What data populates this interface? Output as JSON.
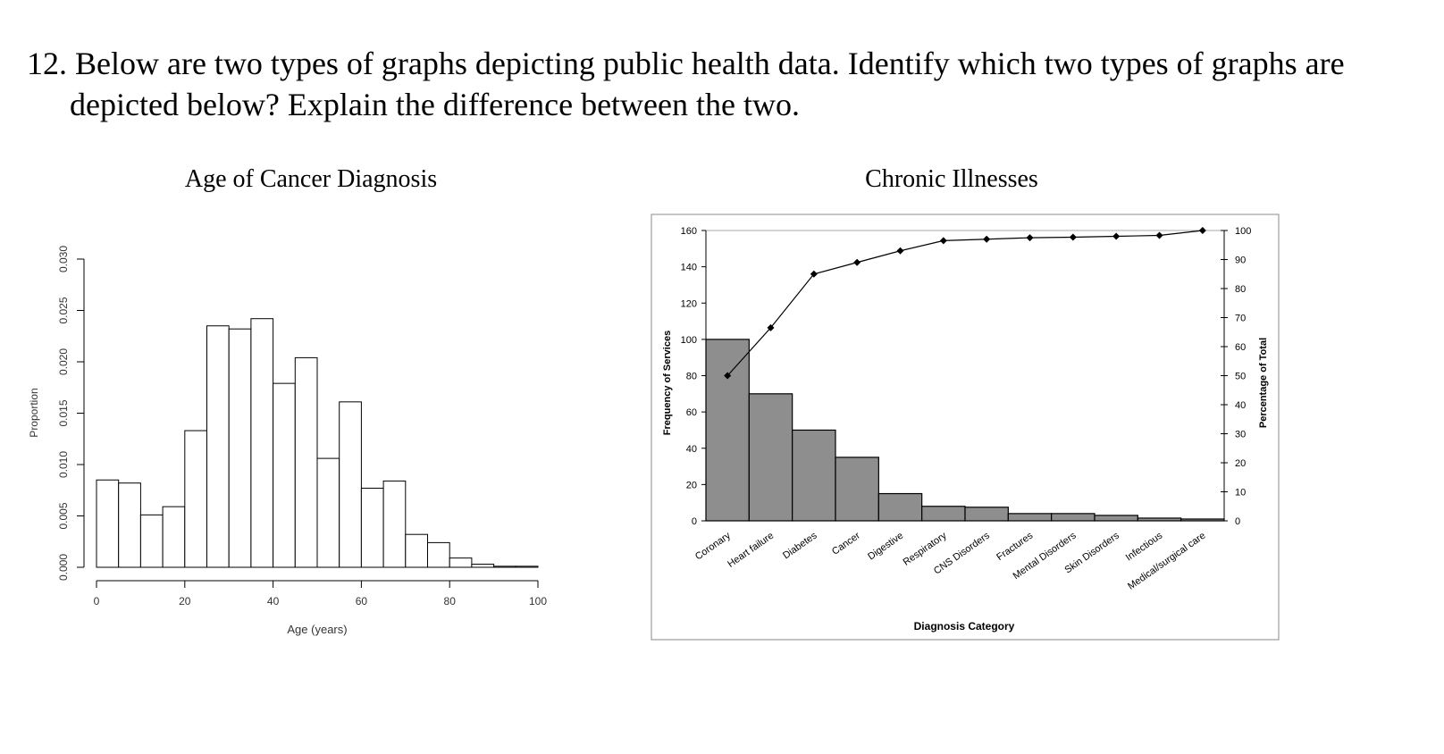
{
  "question": {
    "number": "12.",
    "line1": "Below are two types of graphs depicting public health data. Identify which two types of graphs are",
    "line2": "depicted below? Explain the difference between the two."
  },
  "chart_data": [
    {
      "type": "bar",
      "subtype": "histogram",
      "title": "Age of Cancer Diagnosis",
      "xlabel": "Age (years)",
      "ylabel": "Proportion",
      "xlim": [
        0,
        100
      ],
      "ylim": [
        0,
        0.03
      ],
      "xticks": [
        "0",
        "20",
        "40",
        "60",
        "80",
        "100"
      ],
      "yticks": [
        "0.000",
        "0.005",
        "0.010",
        "0.015",
        "0.020",
        "0.025",
        "0.030"
      ],
      "bin_width": 5,
      "bin_starts": [
        0,
        5,
        10,
        15,
        20,
        25,
        30,
        35,
        40,
        45,
        50,
        55,
        60,
        65,
        70,
        75,
        80,
        85,
        90,
        95
      ],
      "values": [
        0.0085,
        0.0082,
        0.0051,
        0.0059,
        0.0133,
        0.0235,
        0.0232,
        0.0242,
        0.0179,
        0.0204,
        0.0106,
        0.0161,
        0.0077,
        0.0084,
        0.0032,
        0.0024,
        0.0009,
        0.0003,
        0.0001,
        0.0001
      ],
      "bar_fill": "#ffffff",
      "bar_stroke": "#000000"
    },
    {
      "type": "bar",
      "subtype": "pareto",
      "title": "Chronic Illnesses",
      "xlabel": "Diagnosis Category",
      "ylabel": "Frequency of Services",
      "y2label": "Percentage of Total",
      "ylim": [
        0,
        160
      ],
      "y2lim": [
        0,
        100
      ],
      "yticks": [
        "0",
        "20",
        "40",
        "60",
        "80",
        "100",
        "120",
        "140",
        "160"
      ],
      "y2ticks": [
        "0",
        "10",
        "20",
        "30",
        "40",
        "50",
        "60",
        "70",
        "80",
        "90",
        "100"
      ],
      "categories": [
        "Coronary",
        "Heart failure",
        "Diabetes",
        "Cancer",
        "Digestive",
        "Respiratory",
        "CNS Disorders",
        "Fractures",
        "Mental Disorders",
        "Skin Disorders",
        "Infectious",
        "Medical/surgical care"
      ],
      "series": [
        {
          "kind": "bar",
          "values": [
            100,
            70,
            50,
            35,
            15,
            8,
            7.5,
            4,
            4,
            3,
            1.5,
            1
          ]
        },
        {
          "kind": "line",
          "axis": "right",
          "values": [
            50,
            66.5,
            85,
            89,
            93,
            96.5,
            97,
            97.5,
            97.7,
            98,
            98.3,
            100
          ]
        }
      ],
      "bar_fill": "#8e8e8e",
      "bar_stroke": "#000000"
    }
  ]
}
